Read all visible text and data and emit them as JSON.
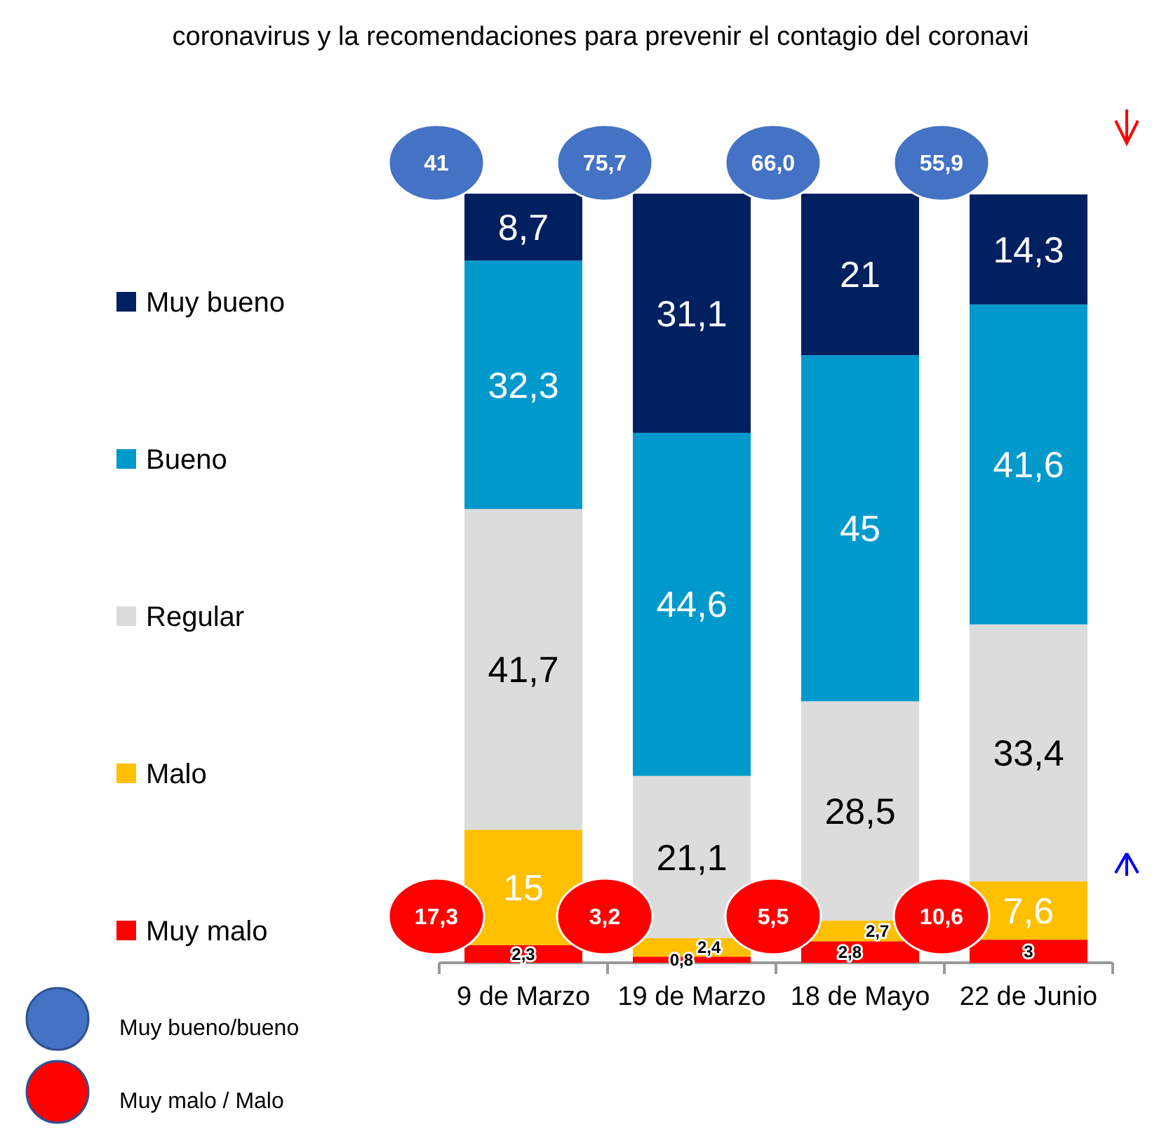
{
  "chart_data": {
    "type": "bar",
    "title": "coronavirus y la recomendaciones para prevenir el contagio del coronavi",
    "categories": [
      "9 de Marzo",
      "19 de Marzo",
      "18 de Mayo",
      "22 de Junio"
    ],
    "stacked": true,
    "legend": "left",
    "tick_labels": "x",
    "ylim": [
      0,
      100
    ],
    "series": [
      {
        "name": "Muy malo",
        "color": "#ff0000",
        "values": [
          2.3,
          0.8,
          2.8,
          3
        ],
        "value_labels": [
          "2,3",
          "0,8",
          "2,8",
          "3"
        ]
      },
      {
        "name": "Malo",
        "color": "#ffc000",
        "values": [
          15,
          2.4,
          2.7,
          7.6
        ],
        "value_labels": [
          "15",
          "2,4",
          "2,7",
          "7,6"
        ]
      },
      {
        "name": "Regular",
        "color": "#dcdcdc",
        "values": [
          41.7,
          21.1,
          28.5,
          33.4
        ],
        "value_labels": [
          "41,7",
          "21,1",
          "28,5",
          "33,4"
        ]
      },
      {
        "name": "Bueno",
        "color": "#0099cc",
        "values": [
          32.3,
          44.6,
          45,
          41.6
        ],
        "value_labels": [
          "32,3",
          "44,6",
          "45",
          "41,6"
        ]
      },
      {
        "name": "Muy bueno",
        "color": "#002060",
        "values": [
          8.7,
          31.1,
          21,
          14.3
        ],
        "value_labels": [
          "8,7",
          "31,1",
          "21",
          "14,3"
        ]
      }
    ],
    "annotations": [
      "41",
      "75,7",
      "66,0",
      "55,9",
      "17,3",
      "3,2",
      "5,5",
      "10,6",
      "Muy bueno/bueno",
      "Muy malo / Malo"
    ]
  }
}
